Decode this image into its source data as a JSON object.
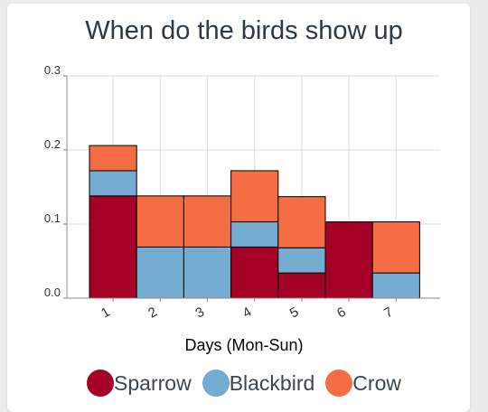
{
  "chart_data": {
    "type": "bar",
    "stacked": true,
    "title": "When do the birds show up",
    "xlabel": "Days (Mon-Sun)",
    "ylabel": "",
    "categories": [
      "1",
      "2",
      "3",
      "4",
      "5",
      "6",
      "7"
    ],
    "ylim": [
      0,
      0.3
    ],
    "yticks": [
      "0.0",
      "0.1",
      "0.2",
      "0.3"
    ],
    "grid": true,
    "legend_position": "bottom",
    "series": [
      {
        "name": "Sparrow",
        "color": "#a50026",
        "values": [
          0.138,
          0.0,
          0.0,
          0.069,
          0.034,
          0.103,
          0.0
        ]
      },
      {
        "name": "Blackbird",
        "color": "#74add1",
        "values": [
          0.034,
          0.069,
          0.069,
          0.034,
          0.034,
          0.0,
          0.034
        ]
      },
      {
        "name": "Crow",
        "color": "#f46d43",
        "values": [
          0.034,
          0.069,
          0.069,
          0.069,
          0.069,
          0.0,
          0.069
        ]
      }
    ]
  }
}
